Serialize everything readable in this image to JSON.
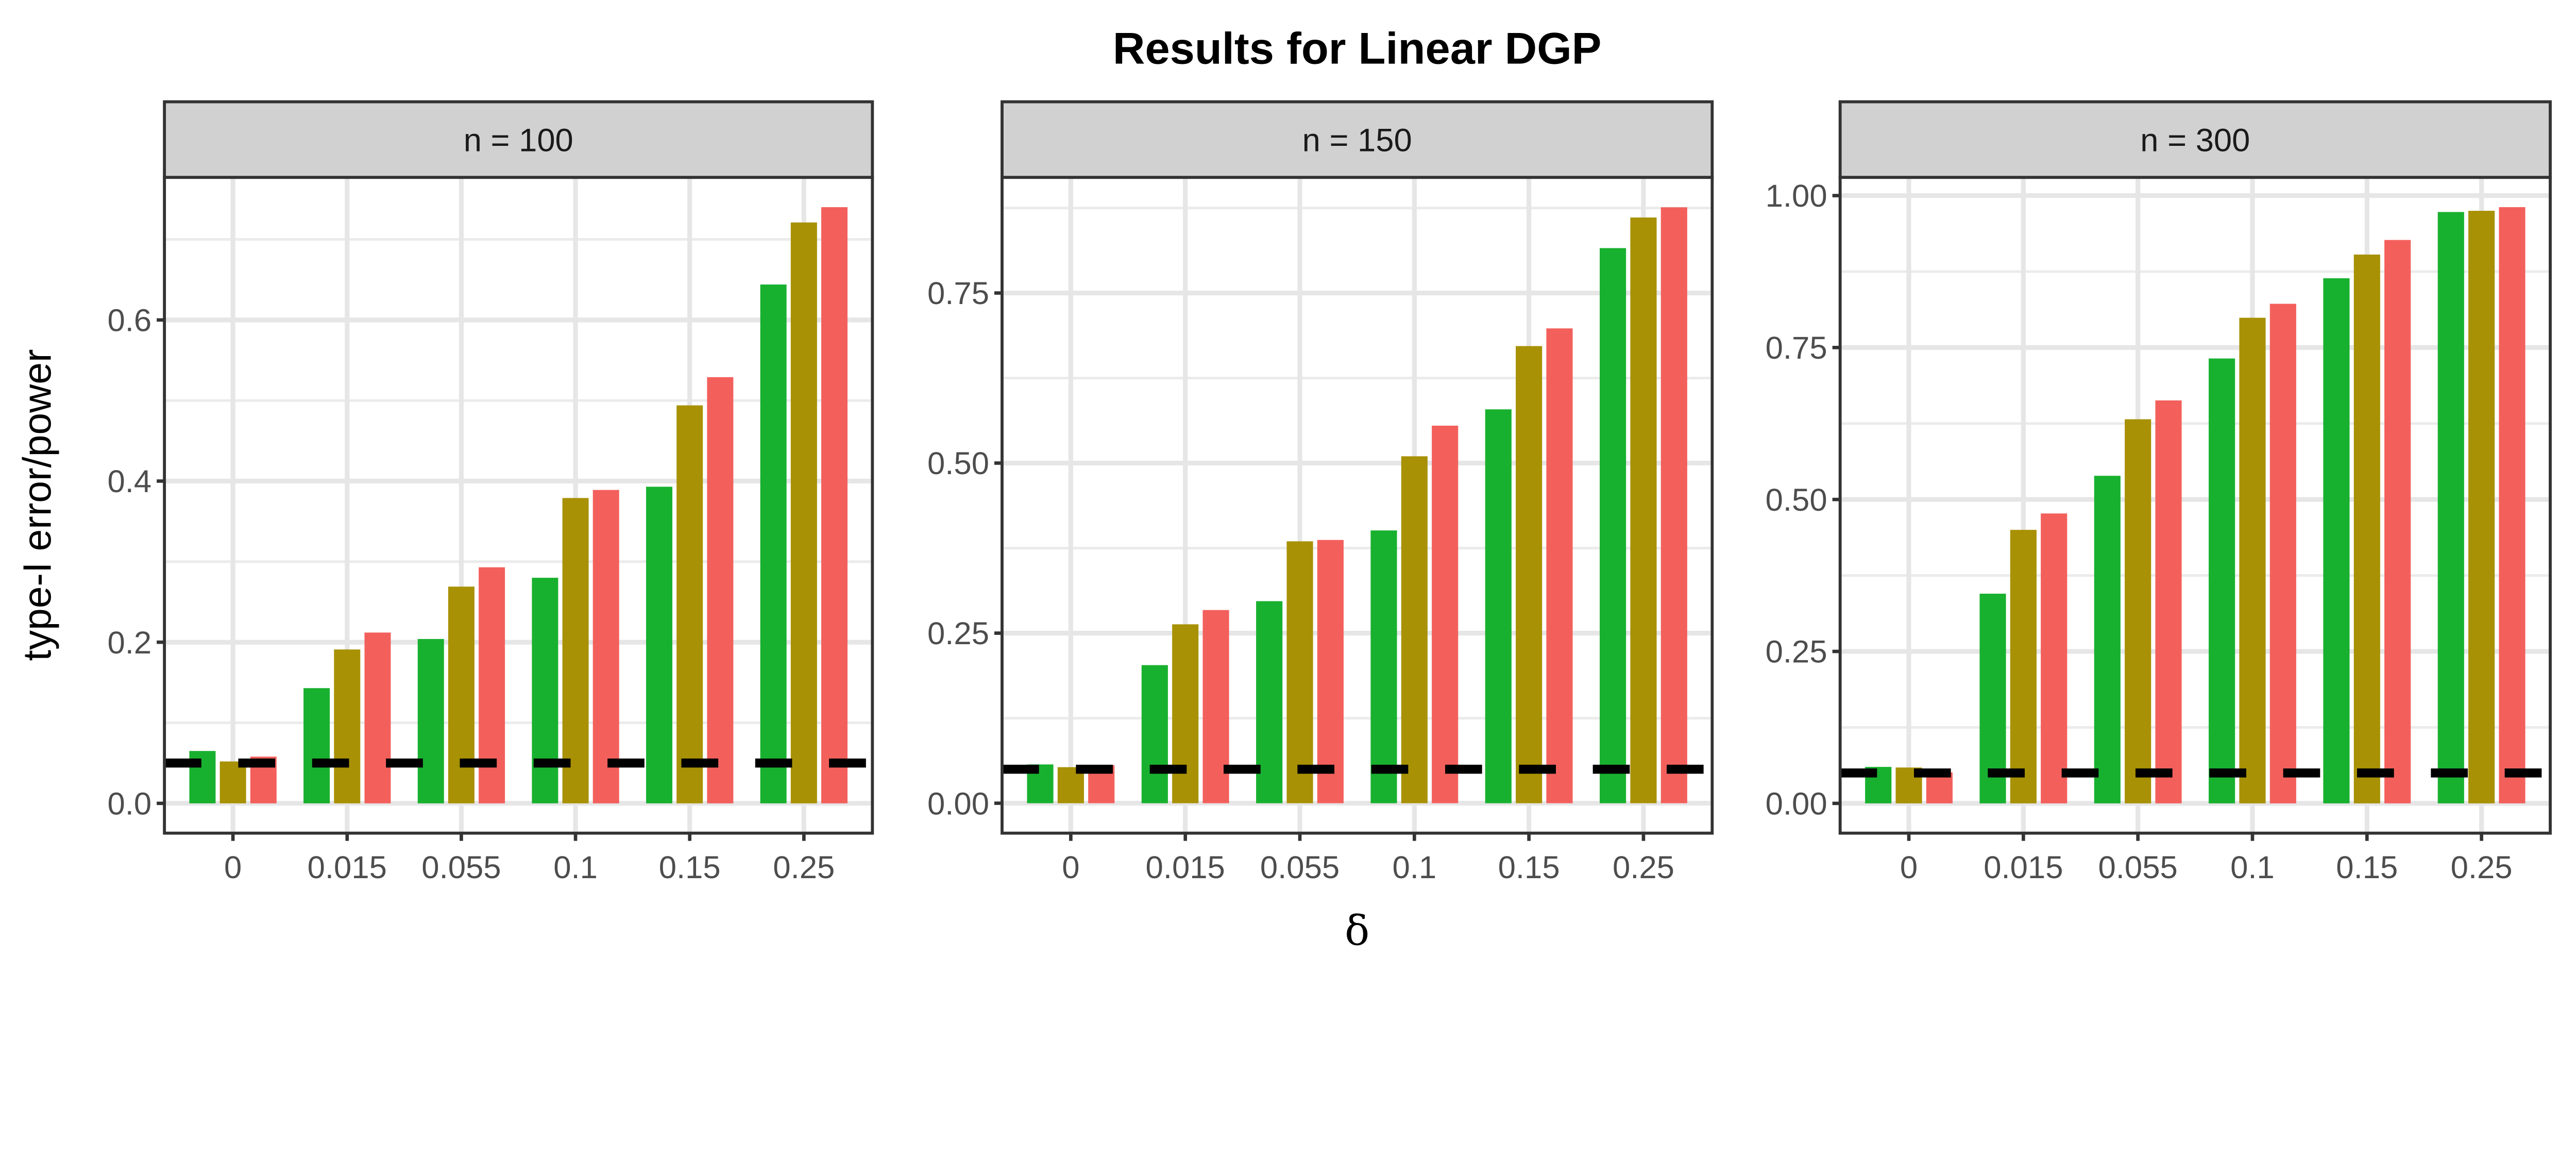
{
  "chart_data": {
    "type": "bar",
    "title": "Results for Linear DGP",
    "xlabel": "δ",
    "ylabel": "type-I error/power",
    "categories": [
      "0",
      "0.015",
      "0.055",
      "0.1",
      "0.15",
      "0.25"
    ],
    "reference_line": {
      "y": 0.05,
      "style": "dashed",
      "color": "#000000"
    },
    "series_colors": [
      "#18B12F",
      "#A89104",
      "#F3605C"
    ],
    "grid": true,
    "legend": "none",
    "panels": [
      {
        "label": "n = 100",
        "ylim": [
          -0.037,
          0.777
        ],
        "yticks": [
          0,
          0.2,
          0.4,
          0.6
        ],
        "ytick_labels": [
          "0.0",
          "0.2",
          "0.4",
          "0.6"
        ],
        "yminor": [
          0.1,
          0.3,
          0.5,
          0.7
        ],
        "series": [
          {
            "values": [
              0.065,
              0.143,
              0.204,
              0.28,
              0.393,
              0.644
            ]
          },
          {
            "values": [
              0.052,
              0.191,
              0.269,
              0.379,
              0.494,
              0.721
            ]
          },
          {
            "values": [
              0.058,
              0.212,
              0.293,
              0.389,
              0.529,
              0.74
            ]
          }
        ]
      },
      {
        "label": "n = 150",
        "ylim": [
          -0.044,
          0.92
        ],
        "yticks": [
          0,
          0.25,
          0.5,
          0.75
        ],
        "ytick_labels": [
          "0.00",
          "0.25",
          "0.50",
          "0.75"
        ],
        "yminor": [
          0.125,
          0.375,
          0.625,
          0.875
        ],
        "series": [
          {
            "values": [
              0.057,
              0.203,
              0.297,
              0.401,
              0.579,
              0.816
            ]
          },
          {
            "values": [
              0.053,
              0.263,
              0.385,
              0.51,
              0.672,
              0.861
            ]
          },
          {
            "values": [
              0.056,
              0.284,
              0.387,
              0.555,
              0.698,
              0.876
            ]
          }
        ]
      },
      {
        "label": "n = 300",
        "ylim": [
          -0.049,
          1.03
        ],
        "yticks": [
          0,
          0.25,
          0.5,
          0.75,
          1.0
        ],
        "ytick_labels": [
          "0.00",
          "0.25",
          "0.50",
          "0.75",
          "1.00"
        ],
        "yminor": [
          0.125,
          0.375,
          0.625,
          0.875
        ],
        "series": [
          {
            "values": [
              0.06,
              0.345,
              0.539,
              0.732,
              0.864,
              0.973
            ]
          },
          {
            "values": [
              0.059,
              0.45,
              0.632,
              0.799,
              0.903,
              0.975
            ]
          },
          {
            "values": [
              0.051,
              0.477,
              0.663,
              0.822,
              0.927,
              0.981
            ]
          }
        ]
      }
    ]
  }
}
